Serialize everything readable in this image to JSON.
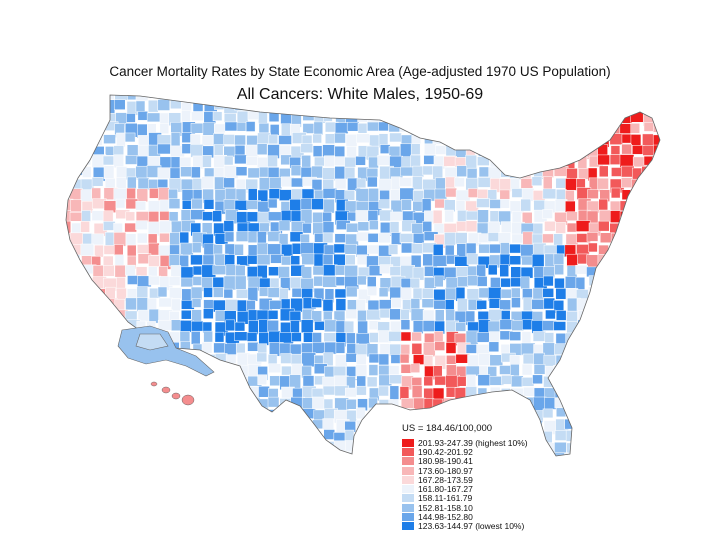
{
  "map": {
    "title": "Cancer Mortality Rates by State Economic Area (Age-adjusted 1970 US Population)",
    "subtitle": "All Cancers:  White Males, 1950-69",
    "legend": {
      "summary": "US = 184.46/100,000",
      "classes": [
        {
          "label": "201.93-247.39 (highest 10%)",
          "color": "#ee1c1c"
        },
        {
          "label": "190.42-201.92",
          "color": "#f2595a"
        },
        {
          "label": "180.98-190.41",
          "color": "#f48d8e"
        },
        {
          "label": "173.60-180.97",
          "color": "#f8b7b8"
        },
        {
          "label": "167.28-173.59",
          "color": "#fbd9da"
        },
        {
          "label": "161.80-167.27",
          "color": "#edf3fb"
        },
        {
          "label": "158.11-161.79",
          "color": "#c4dcf4"
        },
        {
          "label": "152.81-158.10",
          "color": "#98c2ee"
        },
        {
          "label": "144.98-152.80",
          "color": "#6aa6ea"
        },
        {
          "label": "123.63-144.97 (lowest 10%)",
          "color": "#1e7ee8"
        }
      ]
    }
  }
}
